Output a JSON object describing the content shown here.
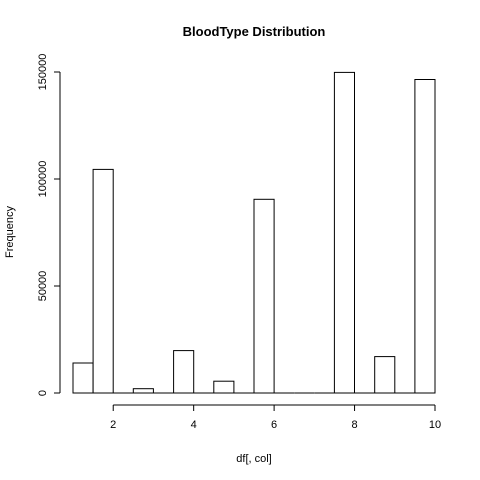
{
  "chart_data": {
    "type": "bar",
    "title": "BloodType  Distribution",
    "xlabel": "df[, col]",
    "ylabel": "Frequency",
    "xlim": [
      1,
      10
    ],
    "ylim": [
      0,
      150000
    ],
    "x_ticks": [
      2,
      4,
      6,
      8,
      10
    ],
    "y_ticks": [
      0,
      50000,
      100000,
      150000
    ],
    "bins": [
      {
        "x0": 1.0,
        "x1": 1.5,
        "value": 14000
      },
      {
        "x0": 1.5,
        "x1": 2.0,
        "value": 104500
      },
      {
        "x0": 2.0,
        "x1": 2.5,
        "value": 0
      },
      {
        "x0": 2.5,
        "x1": 3.0,
        "value": 2000
      },
      {
        "x0": 3.0,
        "x1": 3.5,
        "value": 0
      },
      {
        "x0": 3.5,
        "x1": 4.0,
        "value": 19800
      },
      {
        "x0": 4.0,
        "x1": 4.5,
        "value": 0
      },
      {
        "x0": 4.5,
        "x1": 5.0,
        "value": 5500
      },
      {
        "x0": 5.0,
        "x1": 5.5,
        "value": 0
      },
      {
        "x0": 5.5,
        "x1": 6.0,
        "value": 90500
      },
      {
        "x0": 6.0,
        "x1": 6.5,
        "value": 0
      },
      {
        "x0": 6.5,
        "x1": 7.0,
        "value": 0
      },
      {
        "x0": 7.0,
        "x1": 7.5,
        "value": 0
      },
      {
        "x0": 7.5,
        "x1": 8.0,
        "value": 149800
      },
      {
        "x0": 8.0,
        "x1": 8.5,
        "value": 0
      },
      {
        "x0": 8.5,
        "x1": 9.0,
        "value": 17000
      },
      {
        "x0": 9.0,
        "x1": 9.5,
        "value": 0
      },
      {
        "x0": 9.5,
        "x1": 10.0,
        "value": 146500
      }
    ],
    "grid": false,
    "legend": "none"
  },
  "colors": {
    "bar_fill": "#ffffff",
    "bar_stroke": "#000000",
    "axis": "#000000"
  }
}
